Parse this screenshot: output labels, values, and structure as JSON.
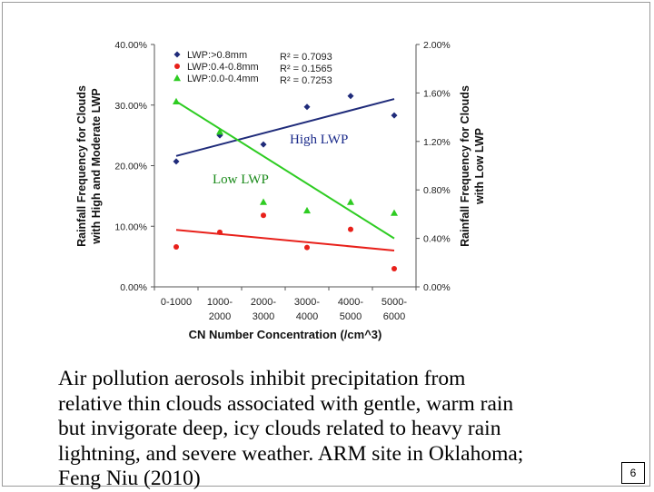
{
  "chart_data": {
    "type": "scatter",
    "xlabel": "CN Number Concentration (/cm^3)",
    "ylabel_left": "Rainfall Frequency for Clouds with High and Moderate LWP",
    "ylabel_right": "Rainfall Frequency for Clouds with Low LWP",
    "categories": [
      [
        "0-1000",
        ""
      ],
      [
        "1000-",
        "2000"
      ],
      [
        "2000-",
        "3000"
      ],
      [
        "3000-",
        "4000"
      ],
      [
        "4000-",
        "5000"
      ],
      [
        "5000-",
        "6000"
      ]
    ],
    "y_left": {
      "ylim": [
        0,
        40
      ],
      "ticks": [
        "0.00%",
        "10.00%",
        "20.00%",
        "30.00%",
        "40.00%"
      ]
    },
    "y_right": {
      "ylim": [
        0,
        2
      ],
      "ticks": [
        "0.00%",
        "0.40%",
        "0.80%",
        "1.20%",
        "1.60%",
        "2.00%"
      ]
    },
    "grid": false,
    "legend": "top-left",
    "series": [
      {
        "name": "LWP:>0.8mm",
        "marker": "diamond",
        "color": "#1f2b7a",
        "axis": "left",
        "r2": "R² = 0.7093",
        "values": [
          20.7,
          25.0,
          23.5,
          29.7,
          31.5,
          28.3
        ],
        "trend": [
          21.6,
          31.0
        ]
      },
      {
        "name": "LWP:0.4-0.8mm",
        "marker": "circle",
        "color": "#e8201a",
        "axis": "left",
        "r2": "R² = 0.1565",
        "values": [
          6.6,
          9.0,
          11.8,
          6.5,
          9.5,
          3.0
        ],
        "trend": [
          9.4,
          6.0
        ]
      },
      {
        "name": "LWP:0.0-0.4mm",
        "marker": "triangle",
        "color": "#2ecc22",
        "axis": "right",
        "r2": "R² = 0.7253",
        "values": [
          1.53,
          1.28,
          0.7,
          0.63,
          0.7,
          0.61
        ],
        "trend": [
          1.53,
          0.4
        ]
      }
    ],
    "annotations": [
      {
        "text": "High LWP",
        "color": "#1a2a8a"
      },
      {
        "text": "Low LWP",
        "color": "#1a8a1a"
      }
    ]
  },
  "caption": "Air pollution aerosols inhibit precipitation from\nrelative thin clouds associated with gentle, warm rain\nbut invigorate deep, icy clouds related to heavy rain\nlightning, and severe weather. ARM site in Oklahoma;\nFeng Niu (2010)",
  "page_number": "6"
}
